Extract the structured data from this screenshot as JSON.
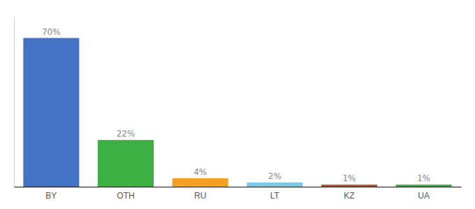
{
  "chart_data": {
    "type": "bar",
    "categories": [
      "BY",
      "OTH",
      "RU",
      "LT",
      "KZ",
      "UA"
    ],
    "values": [
      70,
      22,
      4,
      2,
      1,
      1
    ],
    "value_labels": [
      "70%",
      "22%",
      "4%",
      "2%",
      "1%",
      "1%"
    ],
    "colors": [
      "#4472C4",
      "#3CB043",
      "#F4A020",
      "#7EC8E3",
      "#C0532A",
      "#3CB043"
    ],
    "ylim": [
      0,
      80
    ],
    "data_labels": true,
    "tick_labels": "x"
  }
}
